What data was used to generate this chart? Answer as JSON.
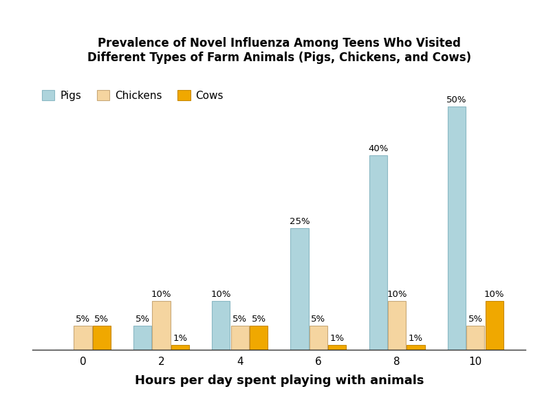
{
  "title": "Prevalence of Novel Influenza Among Teens Who Visited\nDifferent Types of Farm Animals (Pigs, Chickens, and Cows)",
  "xlabel": "Hours per day spent playing with animals",
  "hours": [
    0,
    2,
    4,
    6,
    8,
    10
  ],
  "pigs": [
    0,
    5,
    10,
    25,
    40,
    50
  ],
  "chickens": [
    5,
    10,
    5,
    5,
    10,
    5
  ],
  "cows": [
    5,
    1,
    5,
    1,
    1,
    10
  ],
  "pig_color": "#aed4dc",
  "chicken_color": "#f5d5a0",
  "cow_color": "#f0a800",
  "pig_edge": "#8ab8c4",
  "chicken_edge": "#c8a878",
  "cow_edge": "#c88800",
  "background_color": "#ffffff",
  "ylim": [
    0,
    57
  ],
  "title_fontsize": 12,
  "axis_label_fontsize": 13,
  "tick_fontsize": 11,
  "legend_fontsize": 11,
  "annot_fontsize": 9.5
}
